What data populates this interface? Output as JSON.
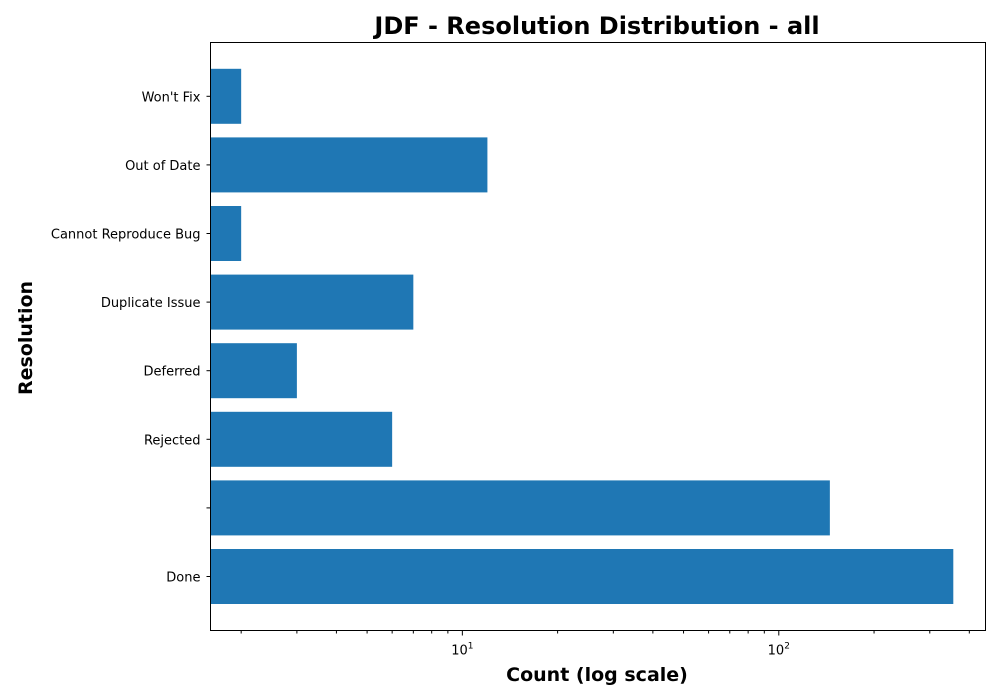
{
  "chart_data": {
    "type": "bar",
    "orientation": "horizontal",
    "title": "JDF - Resolution Distribution - all",
    "xlabel": "Count (log scale)",
    "ylabel": "Resolution",
    "x_scale": "log",
    "xlim": [
      1.6,
      450
    ],
    "categories": [
      "Done",
      "",
      "Rejected",
      "Deferred",
      "Duplicate Issue",
      "Cannot Reproduce Bug",
      "Out of Date",
      "Won't Fix"
    ],
    "values": [
      356,
      145,
      6,
      3,
      7,
      2,
      12,
      2
    ],
    "x_major_ticks": [
      10,
      100
    ],
    "x_tick_labels": [
      {
        "base": "10",
        "exp": "1"
      },
      {
        "base": "10",
        "exp": "2"
      }
    ],
    "bar_color": "#1f77b4",
    "grid": false,
    "legend": "none"
  }
}
